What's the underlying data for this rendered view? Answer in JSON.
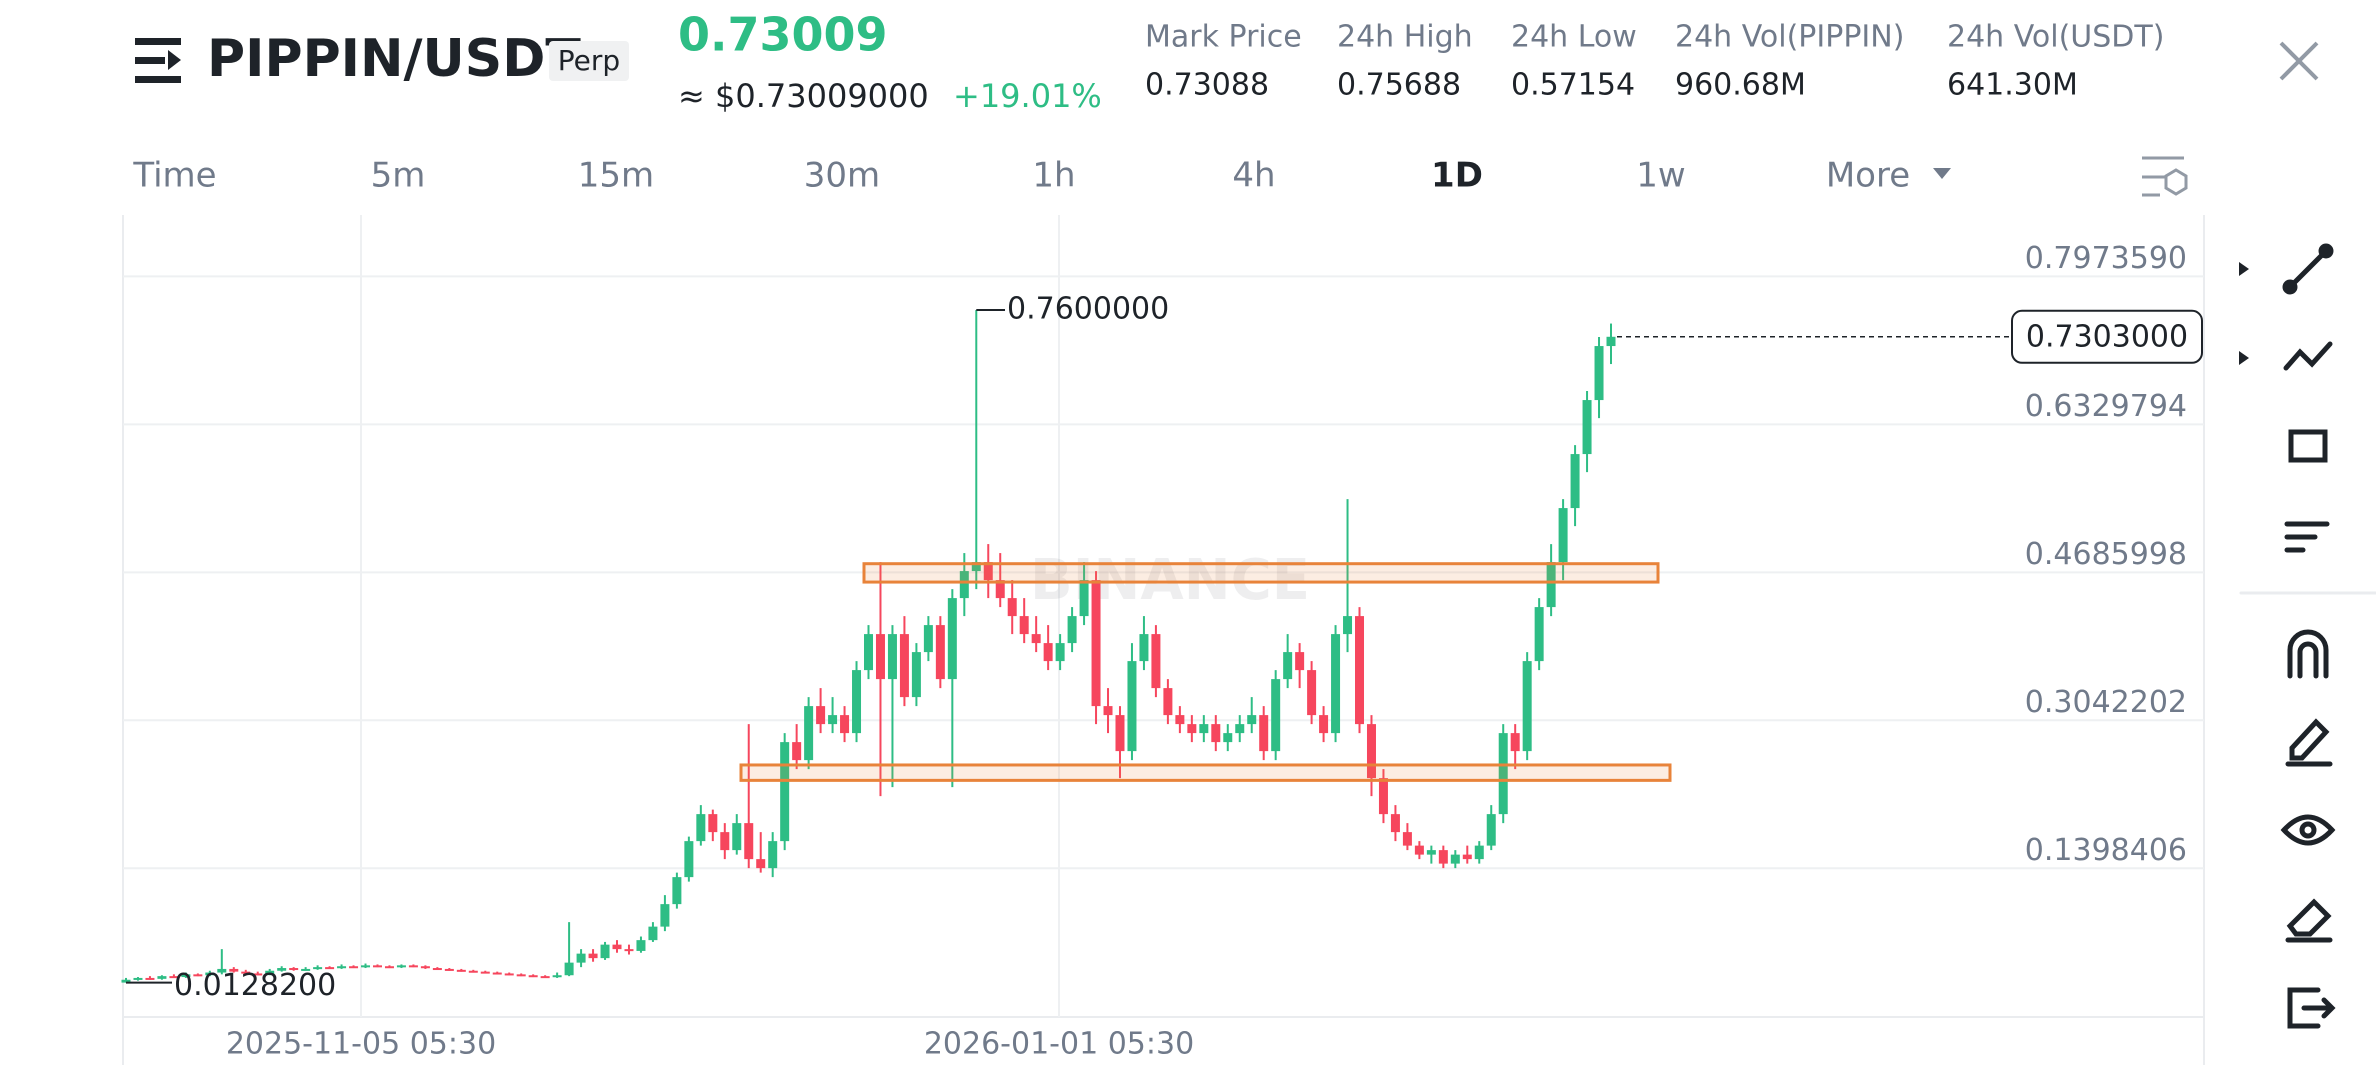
{
  "header": {
    "symbol": "PIPPIN/USDT",
    "tag": "Perp",
    "price": "0.73009",
    "approx": "≈ $0.73009000",
    "change": "+19.01%",
    "stats": [
      {
        "label": "Mark Price",
        "value": "0.73088"
      },
      {
        "label": "24h High",
        "value": "0.75688"
      },
      {
        "label": "24h Low",
        "value": "0.57154"
      },
      {
        "label": "24h Vol(PIPPIN)",
        "value": "960.68M"
      },
      {
        "label": "24h Vol(USDT)",
        "value": "641.30M"
      }
    ]
  },
  "timeframes": [
    "Time",
    "5m",
    "15m",
    "30m",
    "1h",
    "4h",
    "1D",
    "1w",
    "More"
  ],
  "active": "1D",
  "chart": {
    "type": "candlestick",
    "watermark": "BINANCE",
    "ylim": [
      -0.0254,
      0.8656
    ],
    "yticks": [
      {
        "value": 0.797359,
        "label": "0.7973590"
      },
      {
        "value": 0.6329794,
        "label": "0.6329794"
      },
      {
        "value": 0.4685998,
        "label": "0.4685998"
      },
      {
        "value": 0.3042202,
        "label": "0.3042202"
      },
      {
        "value": 0.1398406,
        "label": "0.1398406"
      }
    ],
    "x_labels": [
      "2025-11-05 05:30",
      "2026-01-01 05:30"
    ],
    "high_label": {
      "value": 0.76,
      "label": "0.7600000"
    },
    "low_label": {
      "value": 0.01282,
      "label": "0.0128200"
    },
    "last": {
      "value": 0.7303,
      "label": "0.7303000"
    },
    "up_color": "#2ebd85",
    "down_color": "#f6465d",
    "zone_color": "#e8833a",
    "zones": [
      [
        0.4782,
        0.4578
      ],
      [
        0.2546,
        0.2375
      ]
    ],
    "candles": [
      [
        0.01282,
        0.018,
        0.01282,
        0.016
      ],
      [
        0.016,
        0.019,
        0.015,
        0.018
      ],
      [
        0.018,
        0.02,
        0.016,
        0.017
      ],
      [
        0.017,
        0.021,
        0.016,
        0.02
      ],
      [
        0.02,
        0.022,
        0.018,
        0.019
      ],
      [
        0.019,
        0.024,
        0.018,
        0.022
      ],
      [
        0.022,
        0.023,
        0.02,
        0.021
      ],
      [
        0.021,
        0.026,
        0.02,
        0.024
      ],
      [
        0.024,
        0.05,
        0.022,
        0.028
      ],
      [
        0.028,
        0.03,
        0.024,
        0.025
      ],
      [
        0.025,
        0.027,
        0.022,
        0.023
      ],
      [
        0.023,
        0.025,
        0.021,
        0.022
      ],
      [
        0.022,
        0.028,
        0.021,
        0.026
      ],
      [
        0.026,
        0.031,
        0.025,
        0.029
      ],
      [
        0.029,
        0.03,
        0.026,
        0.027
      ],
      [
        0.027,
        0.03,
        0.026,
        0.028
      ],
      [
        0.028,
        0.032,
        0.027,
        0.03
      ],
      [
        0.03,
        0.031,
        0.028,
        0.029
      ],
      [
        0.029,
        0.033,
        0.028,
        0.031
      ],
      [
        0.031,
        0.032,
        0.029,
        0.03
      ],
      [
        0.03,
        0.034,
        0.029,
        0.032
      ],
      [
        0.032,
        0.033,
        0.03,
        0.031
      ],
      [
        0.031,
        0.032,
        0.029,
        0.03
      ],
      [
        0.03,
        0.033,
        0.029,
        0.032
      ],
      [
        0.032,
        0.033,
        0.03,
        0.031
      ],
      [
        0.031,
        0.032,
        0.028,
        0.029
      ],
      [
        0.029,
        0.03,
        0.027,
        0.028
      ],
      [
        0.028,
        0.029,
        0.026,
        0.027
      ],
      [
        0.027,
        0.028,
        0.025,
        0.026
      ],
      [
        0.026,
        0.027,
        0.024,
        0.025
      ],
      [
        0.025,
        0.026,
        0.023,
        0.024
      ],
      [
        0.024,
        0.025,
        0.022,
        0.023
      ],
      [
        0.023,
        0.024,
        0.021,
        0.022
      ],
      [
        0.022,
        0.023,
        0.02,
        0.021
      ],
      [
        0.021,
        0.022,
        0.019,
        0.02
      ],
      [
        0.02,
        0.021,
        0.018,
        0.019
      ],
      [
        0.019,
        0.024,
        0.018,
        0.021
      ],
      [
        0.021,
        0.08,
        0.02,
        0.035
      ],
      [
        0.035,
        0.05,
        0.03,
        0.045
      ],
      [
        0.045,
        0.05,
        0.036,
        0.04
      ],
      [
        0.04,
        0.058,
        0.038,
        0.055
      ],
      [
        0.055,
        0.06,
        0.046,
        0.05
      ],
      [
        0.05,
        0.055,
        0.044,
        0.048
      ],
      [
        0.048,
        0.064,
        0.046,
        0.06
      ],
      [
        0.06,
        0.08,
        0.058,
        0.075
      ],
      [
        0.075,
        0.11,
        0.07,
        0.1
      ],
      [
        0.1,
        0.135,
        0.095,
        0.13
      ],
      [
        0.13,
        0.175,
        0.125,
        0.17
      ],
      [
        0.17,
        0.21,
        0.165,
        0.2
      ],
      [
        0.2,
        0.205,
        0.17,
        0.18
      ],
      [
        0.18,
        0.19,
        0.15,
        0.16
      ],
      [
        0.16,
        0.2,
        0.155,
        0.19
      ],
      [
        0.19,
        0.3,
        0.14,
        0.15
      ],
      [
        0.15,
        0.18,
        0.135,
        0.14
      ],
      [
        0.14,
        0.18,
        0.13,
        0.17
      ],
      [
        0.17,
        0.29,
        0.16,
        0.28
      ],
      [
        0.28,
        0.3,
        0.25,
        0.26
      ],
      [
        0.26,
        0.33,
        0.25,
        0.32
      ],
      [
        0.32,
        0.34,
        0.29,
        0.3
      ],
      [
        0.3,
        0.33,
        0.29,
        0.31
      ],
      [
        0.31,
        0.32,
        0.28,
        0.29
      ],
      [
        0.29,
        0.37,
        0.28,
        0.36
      ],
      [
        0.36,
        0.41,
        0.35,
        0.4
      ],
      [
        0.4,
        0.48,
        0.22,
        0.35
      ],
      [
        0.35,
        0.41,
        0.23,
        0.4
      ],
      [
        0.4,
        0.42,
        0.32,
        0.33
      ],
      [
        0.33,
        0.39,
        0.32,
        0.38
      ],
      [
        0.38,
        0.42,
        0.37,
        0.41
      ],
      [
        0.41,
        0.42,
        0.34,
        0.35
      ],
      [
        0.35,
        0.45,
        0.23,
        0.44
      ],
      [
        0.44,
        0.49,
        0.42,
        0.47
      ],
      [
        0.47,
        0.76,
        0.45,
        0.48
      ],
      [
        0.48,
        0.5,
        0.44,
        0.46
      ],
      [
        0.46,
        0.49,
        0.43,
        0.44
      ],
      [
        0.44,
        0.46,
        0.4,
        0.42
      ],
      [
        0.42,
        0.44,
        0.39,
        0.4
      ],
      [
        0.4,
        0.42,
        0.38,
        0.39
      ],
      [
        0.39,
        0.41,
        0.36,
        0.37
      ],
      [
        0.37,
        0.4,
        0.36,
        0.39
      ],
      [
        0.39,
        0.43,
        0.38,
        0.42
      ],
      [
        0.42,
        0.48,
        0.41,
        0.46
      ],
      [
        0.46,
        0.47,
        0.3,
        0.32
      ],
      [
        0.32,
        0.34,
        0.29,
        0.31
      ],
      [
        0.31,
        0.32,
        0.24,
        0.27
      ],
      [
        0.27,
        0.39,
        0.26,
        0.37
      ],
      [
        0.37,
        0.42,
        0.36,
        0.4
      ],
      [
        0.4,
        0.41,
        0.33,
        0.34
      ],
      [
        0.34,
        0.35,
        0.3,
        0.31
      ],
      [
        0.31,
        0.32,
        0.29,
        0.3
      ],
      [
        0.3,
        0.31,
        0.28,
        0.29
      ],
      [
        0.29,
        0.31,
        0.28,
        0.3
      ],
      [
        0.3,
        0.31,
        0.27,
        0.28
      ],
      [
        0.28,
        0.3,
        0.27,
        0.29
      ],
      [
        0.29,
        0.31,
        0.28,
        0.3
      ],
      [
        0.3,
        0.33,
        0.29,
        0.31
      ],
      [
        0.31,
        0.32,
        0.26,
        0.27
      ],
      [
        0.27,
        0.36,
        0.26,
        0.35
      ],
      [
        0.35,
        0.4,
        0.34,
        0.38
      ],
      [
        0.38,
        0.39,
        0.34,
        0.36
      ],
      [
        0.36,
        0.37,
        0.3,
        0.31
      ],
      [
        0.31,
        0.32,
        0.28,
        0.29
      ],
      [
        0.29,
        0.41,
        0.28,
        0.4
      ],
      [
        0.4,
        0.55,
        0.38,
        0.42
      ],
      [
        0.42,
        0.43,
        0.29,
        0.3
      ],
      [
        0.3,
        0.31,
        0.22,
        0.24
      ],
      [
        0.24,
        0.25,
        0.19,
        0.2
      ],
      [
        0.2,
        0.21,
        0.17,
        0.18
      ],
      [
        0.18,
        0.19,
        0.16,
        0.165
      ],
      [
        0.165,
        0.17,
        0.15,
        0.155
      ],
      [
        0.155,
        0.165,
        0.145,
        0.16
      ],
      [
        0.16,
        0.165,
        0.14,
        0.145
      ],
      [
        0.145,
        0.16,
        0.14,
        0.155
      ],
      [
        0.155,
        0.165,
        0.145,
        0.15
      ],
      [
        0.15,
        0.17,
        0.145,
        0.165
      ],
      [
        0.165,
        0.21,
        0.16,
        0.2
      ],
      [
        0.2,
        0.3,
        0.19,
        0.29
      ],
      [
        0.29,
        0.3,
        0.25,
        0.27
      ],
      [
        0.27,
        0.38,
        0.26,
        0.37
      ],
      [
        0.37,
        0.44,
        0.36,
        0.43
      ],
      [
        0.43,
        0.5,
        0.42,
        0.48
      ],
      [
        0.48,
        0.55,
        0.46,
        0.54
      ],
      [
        0.54,
        0.61,
        0.52,
        0.6
      ],
      [
        0.6,
        0.67,
        0.58,
        0.66
      ],
      [
        0.66,
        0.73,
        0.64,
        0.72
      ],
      [
        0.72,
        0.745,
        0.7,
        0.7303
      ]
    ]
  }
}
